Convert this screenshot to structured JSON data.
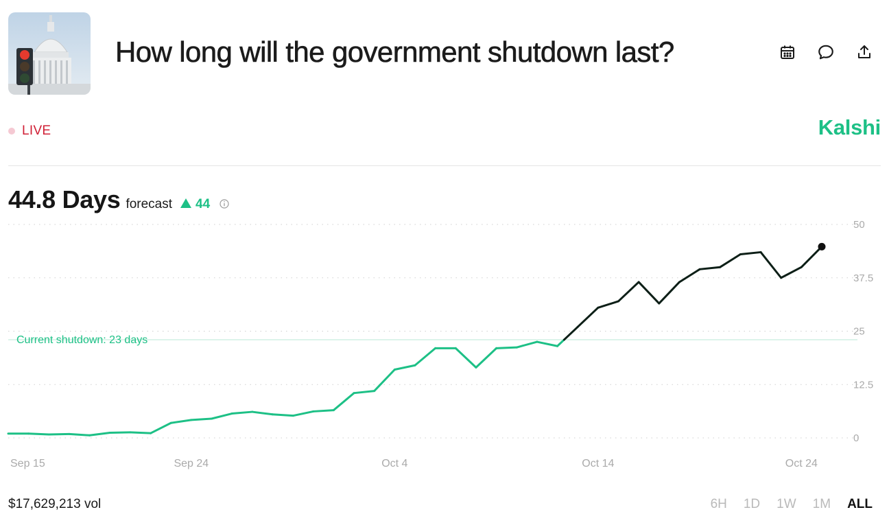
{
  "header": {
    "title": "How long will the government shutdown last?",
    "thumbnail_icon": "capitol-traffic-light-image",
    "actions": [
      {
        "name": "calendar-icon"
      },
      {
        "name": "comment-icon"
      },
      {
        "name": "share-icon"
      }
    ]
  },
  "status": {
    "live_label": "LIVE",
    "brand": "Kalshi",
    "live_color": "#d01f35",
    "brand_color": "#1dc086"
  },
  "forecast": {
    "value": "44.8 Days",
    "label": "forecast",
    "change": "44",
    "change_direction": "up"
  },
  "chart_data": {
    "type": "line",
    "ylim": [
      0,
      50
    ],
    "y_ticks": [
      "50",
      "37.5",
      "25",
      "12.5",
      "0"
    ],
    "x_ticks": [
      "Sep 15",
      "Sep 24",
      "Oct 4",
      "Oct 14",
      "Oct 24"
    ],
    "reference_line": {
      "value": 23,
      "label": "Current shutdown: 23 days"
    },
    "colors": {
      "below_reference": "#1dc086",
      "above_reference": "#0d1f17"
    },
    "series": [
      {
        "x": [
          "Sep 15",
          "Sep 16",
          "Sep 17",
          "Sep 18",
          "Sep 19",
          "Sep 20",
          "Sep 21",
          "Sep 22",
          "Sep 23",
          "Sep 24",
          "Sep 25",
          "Sep 26",
          "Sep 27",
          "Sep 28",
          "Sep 29",
          "Sep 30",
          "Oct 1",
          "Oct 2",
          "Oct 3",
          "Oct 4",
          "Oct 5",
          "Oct 6",
          "Oct 7",
          "Oct 8",
          "Oct 9",
          "Oct 10",
          "Oct 11",
          "Oct 12",
          "Oct 13",
          "Oct 14",
          "Oct 15",
          "Oct 16",
          "Oct 17",
          "Oct 18",
          "Oct 19",
          "Oct 20",
          "Oct 21",
          "Oct 22",
          "Oct 23",
          "Oct 24",
          "Oct 25"
        ],
        "y": [
          1,
          1,
          0.8,
          0.9,
          0.6,
          1.2,
          1.3,
          1.1,
          3.5,
          4.2,
          4.5,
          5.7,
          6.1,
          5.5,
          5.2,
          6.2,
          6.5,
          10.5,
          11,
          16,
          17,
          21,
          21,
          16.5,
          21,
          21.2,
          22.5,
          21.5,
          26,
          30.5,
          32,
          36.5,
          31.5,
          36.5,
          39.5,
          40,
          43,
          43.5,
          37.5,
          40,
          44.8
        ]
      }
    ]
  },
  "footer": {
    "volume": "$17,629,213 vol",
    "ranges": [
      {
        "label": "6H",
        "active": false
      },
      {
        "label": "1D",
        "active": false
      },
      {
        "label": "1W",
        "active": false
      },
      {
        "label": "1M",
        "active": false
      },
      {
        "label": "ALL",
        "active": true
      }
    ]
  }
}
